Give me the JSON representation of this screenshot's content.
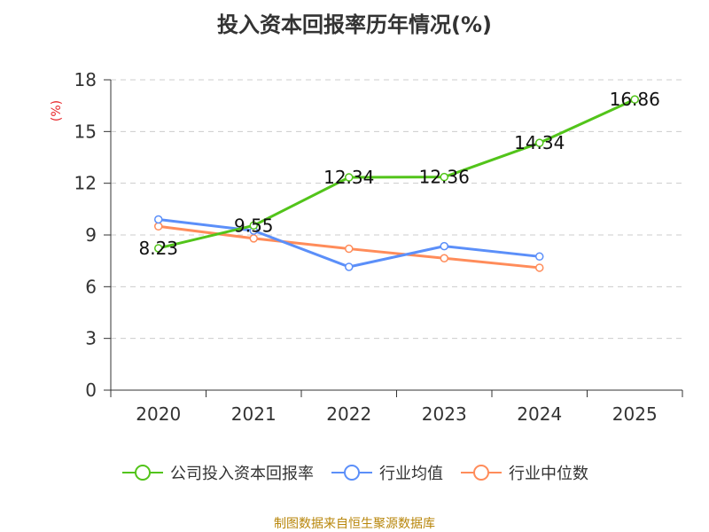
{
  "title": "投入资本回报率历年情况(%)",
  "source": "制图数据来自恒生聚源数据库",
  "source_color": "#b8860b",
  "chart_data": {
    "type": "line",
    "title": "投入资本回报率历年情况(%)",
    "ylabel": "(%)",
    "ylabel_color": "#e8262a",
    "xlabel": "",
    "categories": [
      "2020",
      "2021",
      "2022",
      "2023",
      "2024",
      "2025"
    ],
    "ylim": [
      0,
      18
    ],
    "yticks": [
      0,
      3,
      6,
      9,
      12,
      15,
      18
    ],
    "grid": true,
    "legend_position": "bottom",
    "series": [
      {
        "name": "公司投入资本回报率",
        "color": "#52c41a",
        "values": [
          8.23,
          9.55,
          12.34,
          12.36,
          14.34,
          16.86
        ],
        "labels": [
          "8.23",
          "9.55",
          "12.34",
          "12.36",
          "14.34",
          "16.86"
        ],
        "show_labels": true
      },
      {
        "name": "行业均值",
        "color": "#5b8ff9",
        "values": [
          9.9,
          9.25,
          7.15,
          8.35,
          7.75,
          null
        ],
        "show_labels": false
      },
      {
        "name": "行业中位数",
        "color": "#ff8c5a",
        "values": [
          9.5,
          8.8,
          8.2,
          7.65,
          7.1,
          null
        ],
        "show_labels": false
      }
    ]
  }
}
